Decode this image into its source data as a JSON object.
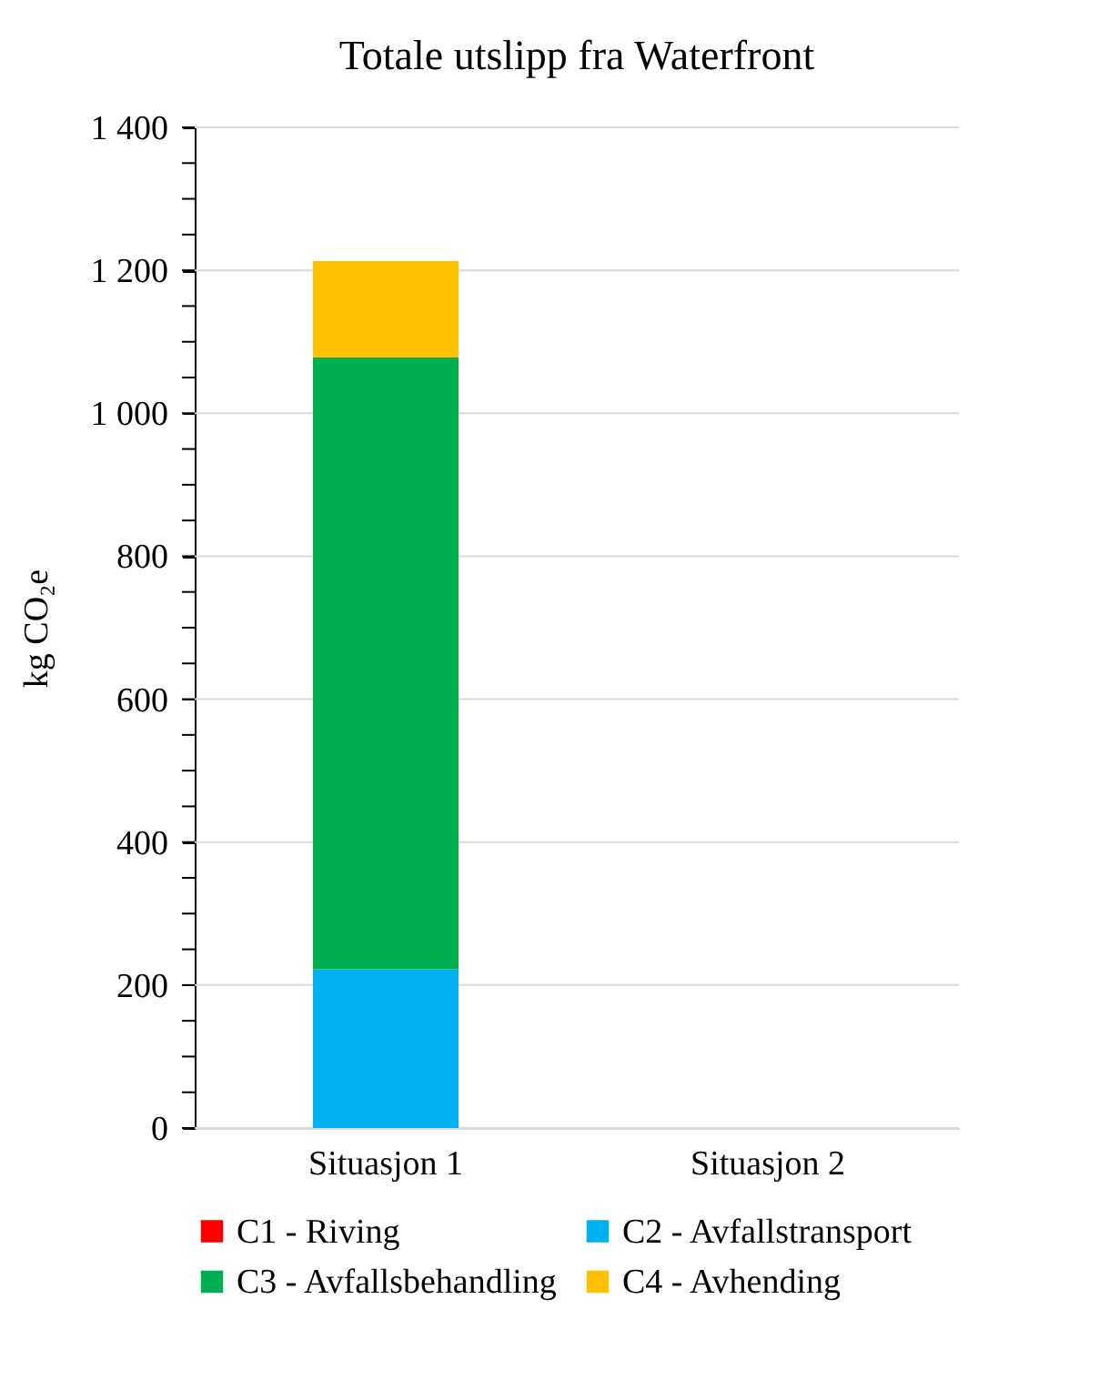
{
  "chart_data": {
    "type": "bar",
    "title": "Totale utslipp fra Waterfront",
    "ylabel": "kg CO₂e",
    "categories": [
      "Situasjon 1",
      "Situasjon 2"
    ],
    "stacked": true,
    "series": [
      {
        "name": "C1 - Riving",
        "color": "#ff0000",
        "values": [
          0,
          0
        ]
      },
      {
        "name": "C2 - Avfallstransport",
        "color": "#00b0f0",
        "values": [
          222,
          0
        ]
      },
      {
        "name": "C3 - Avfallsbehandling",
        "color": "#00b050",
        "values": [
          856,
          0
        ]
      },
      {
        "name": "C4 - Avhending",
        "color": "#ffc000",
        "values": [
          135,
          0
        ]
      }
    ],
    "ylim": [
      0,
      1400
    ],
    "yticks": [
      {
        "value": 0,
        "label": "0"
      },
      {
        "value": 50,
        "label": null
      },
      {
        "value": 100,
        "label": null
      },
      {
        "value": 150,
        "label": null
      },
      {
        "value": 200,
        "label": "200"
      },
      {
        "value": 250,
        "label": null
      },
      {
        "value": 300,
        "label": null
      },
      {
        "value": 350,
        "label": null
      },
      {
        "value": 400,
        "label": "400"
      },
      {
        "value": 450,
        "label": null
      },
      {
        "value": 500,
        "label": null
      },
      {
        "value": 550,
        "label": null
      },
      {
        "value": 600,
        "label": "600"
      },
      {
        "value": 650,
        "label": null
      },
      {
        "value": 700,
        "label": null
      },
      {
        "value": 750,
        "label": null
      },
      {
        "value": 800,
        "label": "800"
      },
      {
        "value": 850,
        "label": null
      },
      {
        "value": 900,
        "label": null
      },
      {
        "value": 950,
        "label": null
      },
      {
        "value": 1000,
        "label": "1 000"
      },
      {
        "value": 1050,
        "label": null
      },
      {
        "value": 1100,
        "label": null
      },
      {
        "value": 1150,
        "label": null
      },
      {
        "value": 1200,
        "label": "1 200"
      },
      {
        "value": 1250,
        "label": null
      },
      {
        "value": 1300,
        "label": null
      },
      {
        "value": 1350,
        "label": null
      },
      {
        "value": 1400,
        "label": "1 400"
      }
    ],
    "grid": "y",
    "legend": "bottom"
  }
}
